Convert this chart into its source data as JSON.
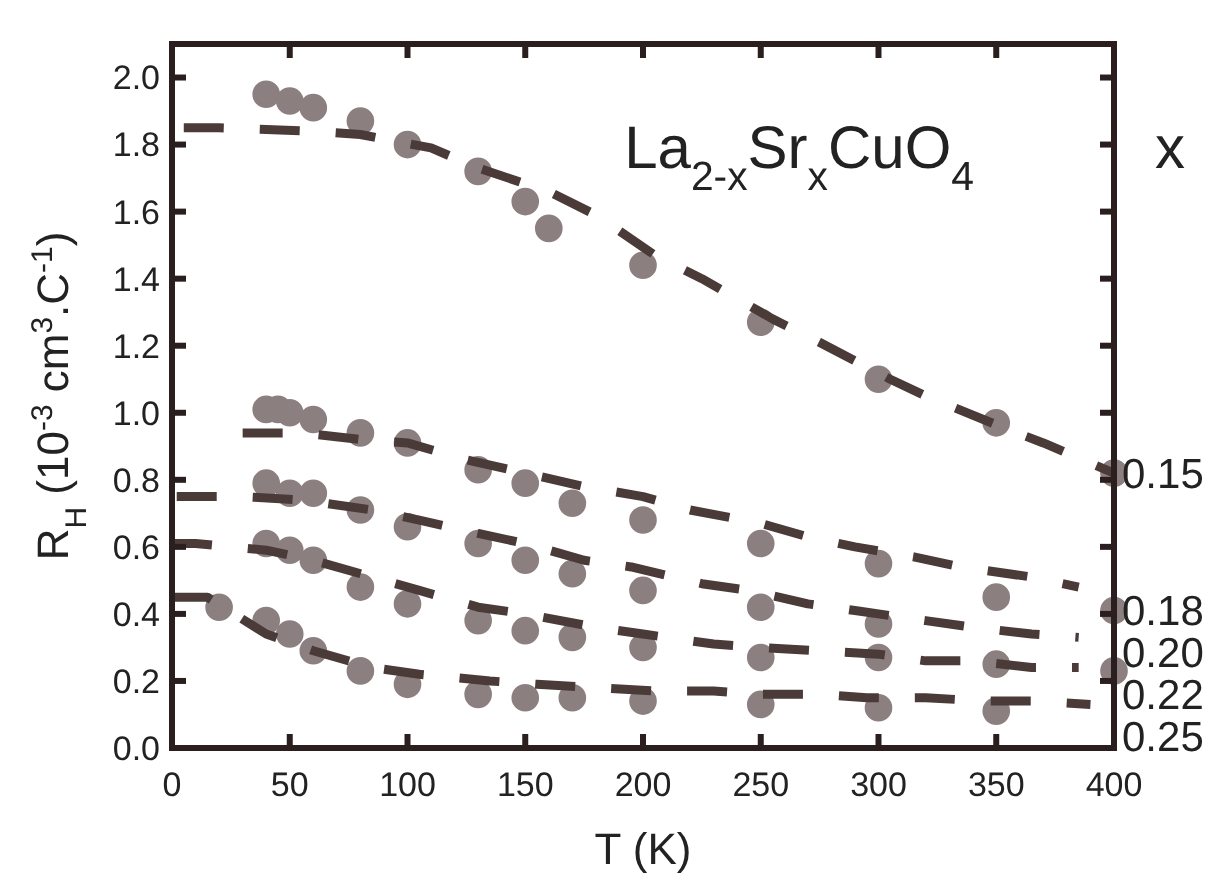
{
  "chart_data": {
    "type": "scatter",
    "title": "La$_{2-x}$Sr$_{x}$CuO$_{4}$",
    "legend_title": "x",
    "xlabel": "T  (K)",
    "ylabel": "R$_{H}$  (10$^{-3}$ cm$^{3}$.C$^{-1}$)",
    "xlim": [
      0,
      400
    ],
    "xticks": [
      0,
      50,
      100,
      150,
      200,
      250,
      300,
      350,
      400
    ],
    "ylim": [
      0,
      2.1
    ],
    "yticks": [
      {
        "value": 0,
        "label": "0.0"
      },
      0.2,
      0.4,
      0.6,
      0.8,
      {
        "value": 1,
        "label": "1.0"
      },
      1.2,
      1.4,
      1.6,
      1.8,
      {
        "value": 2,
        "label": "2.0"
      }
    ],
    "grid": false,
    "marker": "circle",
    "series": [
      {
        "name": "0.15",
        "color": "#8c7f80",
        "x": [
          40,
          50,
          60,
          80,
          100,
          130,
          150,
          160,
          200,
          250,
          300,
          350,
          400
        ],
        "values": [
          1.95,
          1.93,
          1.91,
          1.87,
          1.8,
          1.72,
          1.63,
          1.55,
          1.44,
          1.27,
          1.1,
          0.97,
          0.82
        ]
      },
      {
        "name": "0.18",
        "color": "#8c7f80",
        "x": [
          40,
          45,
          50,
          60,
          80,
          100,
          130,
          150,
          170,
          200,
          250,
          300,
          350,
          400
        ],
        "values": [
          1.01,
          1.01,
          1.0,
          0.98,
          0.94,
          0.91,
          0.83,
          0.79,
          0.73,
          0.68,
          0.61,
          0.55,
          0.45,
          0.41
        ]
      },
      {
        "name": "0.20",
        "color": "#8c7f80",
        "x": [
          40,
          50,
          60,
          80,
          100,
          130,
          150,
          170,
          200,
          250,
          300
        ],
        "values": [
          0.79,
          0.76,
          0.76,
          0.71,
          0.66,
          0.61,
          0.56,
          0.52,
          0.47,
          0.42,
          0.37
        ]
      },
      {
        "name": "0.22",
        "color": "#8c7f80",
        "x": [
          40,
          50,
          60,
          80,
          100,
          130,
          150,
          170,
          200,
          250,
          300,
          350,
          400
        ],
        "values": [
          0.61,
          0.59,
          0.56,
          0.48,
          0.43,
          0.38,
          0.35,
          0.33,
          0.3,
          0.27,
          0.27,
          0.25,
          0.23
        ]
      },
      {
        "name": "0.25",
        "color": "#8c7f80",
        "x": [
          20,
          40,
          50,
          60,
          80,
          100,
          130,
          150,
          170,
          200,
          250,
          300,
          350
        ],
        "values": [
          0.42,
          0.38,
          0.34,
          0.29,
          0.23,
          0.19,
          0.16,
          0.15,
          0.15,
          0.14,
          0.13,
          0.12,
          0.11
        ]
      },
      {
        "type": "line",
        "marker": "none",
        "line_style": "dashed",
        "color": "#4a3b39",
        "x": [
          5,
          20,
          60,
          80,
          110,
          130,
          160,
          180,
          205,
          225,
          255,
          275,
          305,
          320,
          355,
          370,
          400
        ],
        "values": [
          1.85,
          1.85,
          1.84,
          1.83,
          1.79,
          1.73,
          1.66,
          1.59,
          1.47,
          1.4,
          1.28,
          1.21,
          1.1,
          1.05,
          0.95,
          0.91,
          0.82
        ]
      },
      {
        "type": "line",
        "marker": "none",
        "line_style": "dashed",
        "color": "#4a3b39",
        "x": [
          30,
          55,
          80,
          100,
          125,
          150,
          175,
          200,
          220,
          250,
          270,
          290,
          315,
          335,
          365,
          385
        ],
        "values": [
          0.94,
          0.94,
          0.92,
          0.91,
          0.86,
          0.82,
          0.78,
          0.75,
          0.71,
          0.67,
          0.63,
          0.6,
          0.57,
          0.54,
          0.51,
          0.48
        ]
      },
      {
        "type": "line",
        "marker": "none",
        "line_style": "dashed",
        "color": "#4a3b39",
        "x": [
          2,
          30,
          55,
          85,
          105,
          130,
          150,
          175,
          195,
          225,
          245,
          270,
          290,
          320,
          340,
          365,
          385
        ],
        "values": [
          0.75,
          0.75,
          0.74,
          0.71,
          0.68,
          0.64,
          0.61,
          0.56,
          0.54,
          0.49,
          0.47,
          0.43,
          0.41,
          0.38,
          0.36,
          0.34,
          0.33
        ]
      },
      {
        "type": "line",
        "marker": "none",
        "line_style": "dashed",
        "color": "#4a3b39",
        "x": [
          0,
          10,
          40,
          60,
          85,
          105,
          130,
          150,
          180,
          200,
          230,
          250,
          275,
          300,
          320,
          340,
          365,
          385
        ],
        "values": [
          0.61,
          0.61,
          0.59,
          0.56,
          0.51,
          0.47,
          0.42,
          0.4,
          0.36,
          0.34,
          0.31,
          0.3,
          0.29,
          0.28,
          0.26,
          0.26,
          0.24,
          0.24
        ]
      },
      {
        "type": "line",
        "marker": "none",
        "line_style": "dashed",
        "color": "#4a3b39",
        "x": [
          0,
          15,
          40,
          60,
          85,
          105,
          135,
          155,
          180,
          205,
          230,
          250,
          275,
          295,
          320,
          345,
          365,
          390
        ],
        "values": [
          0.45,
          0.45,
          0.34,
          0.29,
          0.24,
          0.22,
          0.2,
          0.19,
          0.18,
          0.17,
          0.17,
          0.16,
          0.16,
          0.15,
          0.15,
          0.14,
          0.14,
          0.13
        ]
      }
    ]
  }
}
